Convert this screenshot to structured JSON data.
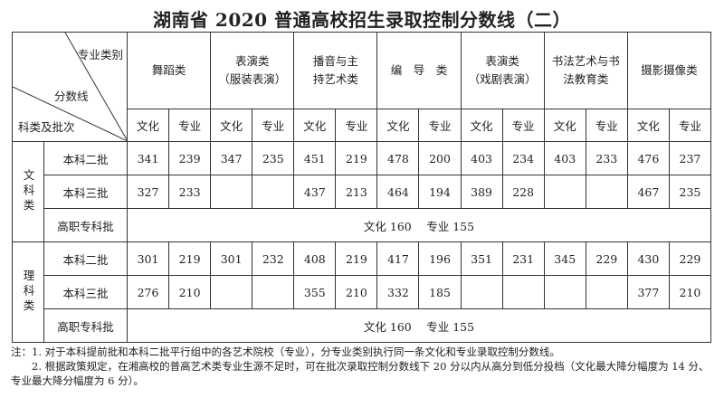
{
  "title": "湖南省 2020 普通高校招生录取控制分数线（二）",
  "header": {
    "diag_top": "专业类别",
    "diag_mid": "分数线",
    "diag_bottom": "科类及批次",
    "categories": [
      [
        "舞蹈类"
      ],
      [
        "表演类",
        "（服装表演）"
      ],
      [
        "播音与主",
        "持艺术类"
      ],
      [
        "编　导　类"
      ],
      [
        "表演类",
        "（戏剧表演）"
      ],
      [
        "书法艺术与书",
        "法教育类"
      ],
      [
        "摄影摄像类"
      ]
    ],
    "sub": [
      "文化",
      "专业"
    ]
  },
  "groups": [
    {
      "name": "文科类",
      "rows": [
        {
          "batch": "本科二批",
          "values": [
            "341",
            "239",
            "347",
            "235",
            "451",
            "219",
            "478",
            "200",
            "403",
            "234",
            "403",
            "233",
            "476",
            "237"
          ]
        },
        {
          "batch": "本科三批",
          "values": [
            "327",
            "233",
            "",
            "",
            "437",
            "213",
            "464",
            "194",
            "389",
            "228",
            "",
            "",
            "467",
            "235"
          ]
        }
      ],
      "vocational": {
        "batch": "高职专科批",
        "text": "文化 160　 专业 155"
      }
    },
    {
      "name": "理科类",
      "rows": [
        {
          "batch": "本科二批",
          "values": [
            "301",
            "219",
            "301",
            "232",
            "408",
            "219",
            "417",
            "196",
            "351",
            "231",
            "345",
            "229",
            "430",
            "229"
          ]
        },
        {
          "batch": "本科三批",
          "values": [
            "276",
            "210",
            "",
            "",
            "355",
            "210",
            "332",
            "185",
            "",
            "",
            "",
            "",
            "377",
            "210"
          ]
        }
      ],
      "vocational": {
        "batch": "高职专科批",
        "text": "文化 160　 专业 155"
      }
    }
  ],
  "notes": [
    "注：1.  对于本科提前批和本科二批平行组中的各艺术院校（专业），分专业类别执行同一条文化和专业录取控制分数线。",
    "　　2.  根据政策规定，在湘高校的普高艺术类专业生源不足时，可在批次录取控制分数线下 20 分以内从高分到低分投档（文化最大降分幅度为 14 分、专业最大降分幅度为 6 分）。"
  ]
}
